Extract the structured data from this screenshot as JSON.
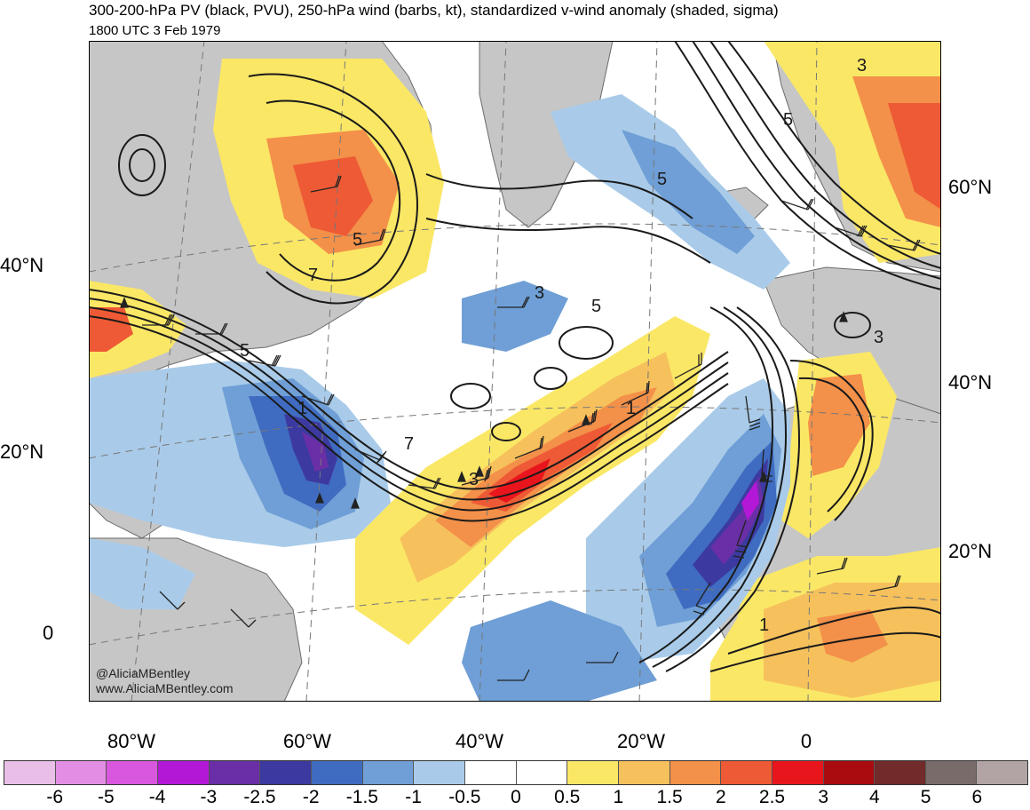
{
  "title": "300-200-hPa PV (black, PVU), 250-hPa wind (barbs, kt), standardized v-wind anomaly (shaded, sigma)",
  "subtitle": "1800 UTC 3 Feb 1979",
  "credit": {
    "handle": "@AliciaMBentley",
    "site": "www.AliciaMBentley.com"
  },
  "left_lat_labels": [
    "40°N",
    "20°N",
    "0"
  ],
  "right_lat_labels": [
    "60°N",
    "40°N",
    "20°N"
  ],
  "lon_labels": [
    "80°W",
    "60°W",
    "40°W",
    "20°W",
    "0"
  ],
  "contour_labels": [
    "5",
    "5",
    "5",
    "5",
    "5",
    "3",
    "3",
    "3",
    "3",
    "7",
    "7",
    "1",
    "1",
    "1"
  ],
  "colorbar": {
    "colors": [
      "#e9bfe8",
      "#e38ee4",
      "#d957df",
      "#b318d6",
      "#6a2fa6",
      "#3c3aa0",
      "#3f6cc0",
      "#6f9fd6",
      "#a9cbe9",
      "#ffffff",
      "#ffffff",
      "#fae766",
      "#f6c15c",
      "#f39049",
      "#ee5a35",
      "#e9151c",
      "#a90b0f",
      "#722a2a",
      "#7a6b6b",
      "#b2a4a4"
    ],
    "labels": [
      "-6",
      "-5",
      "-4",
      "-3",
      "-2.5",
      "-2",
      "-1.5",
      "-1",
      "-0.5",
      "0",
      "0.5",
      "1",
      "1.5",
      "2",
      "2.5",
      "3",
      "4",
      "5",
      "6"
    ]
  }
}
